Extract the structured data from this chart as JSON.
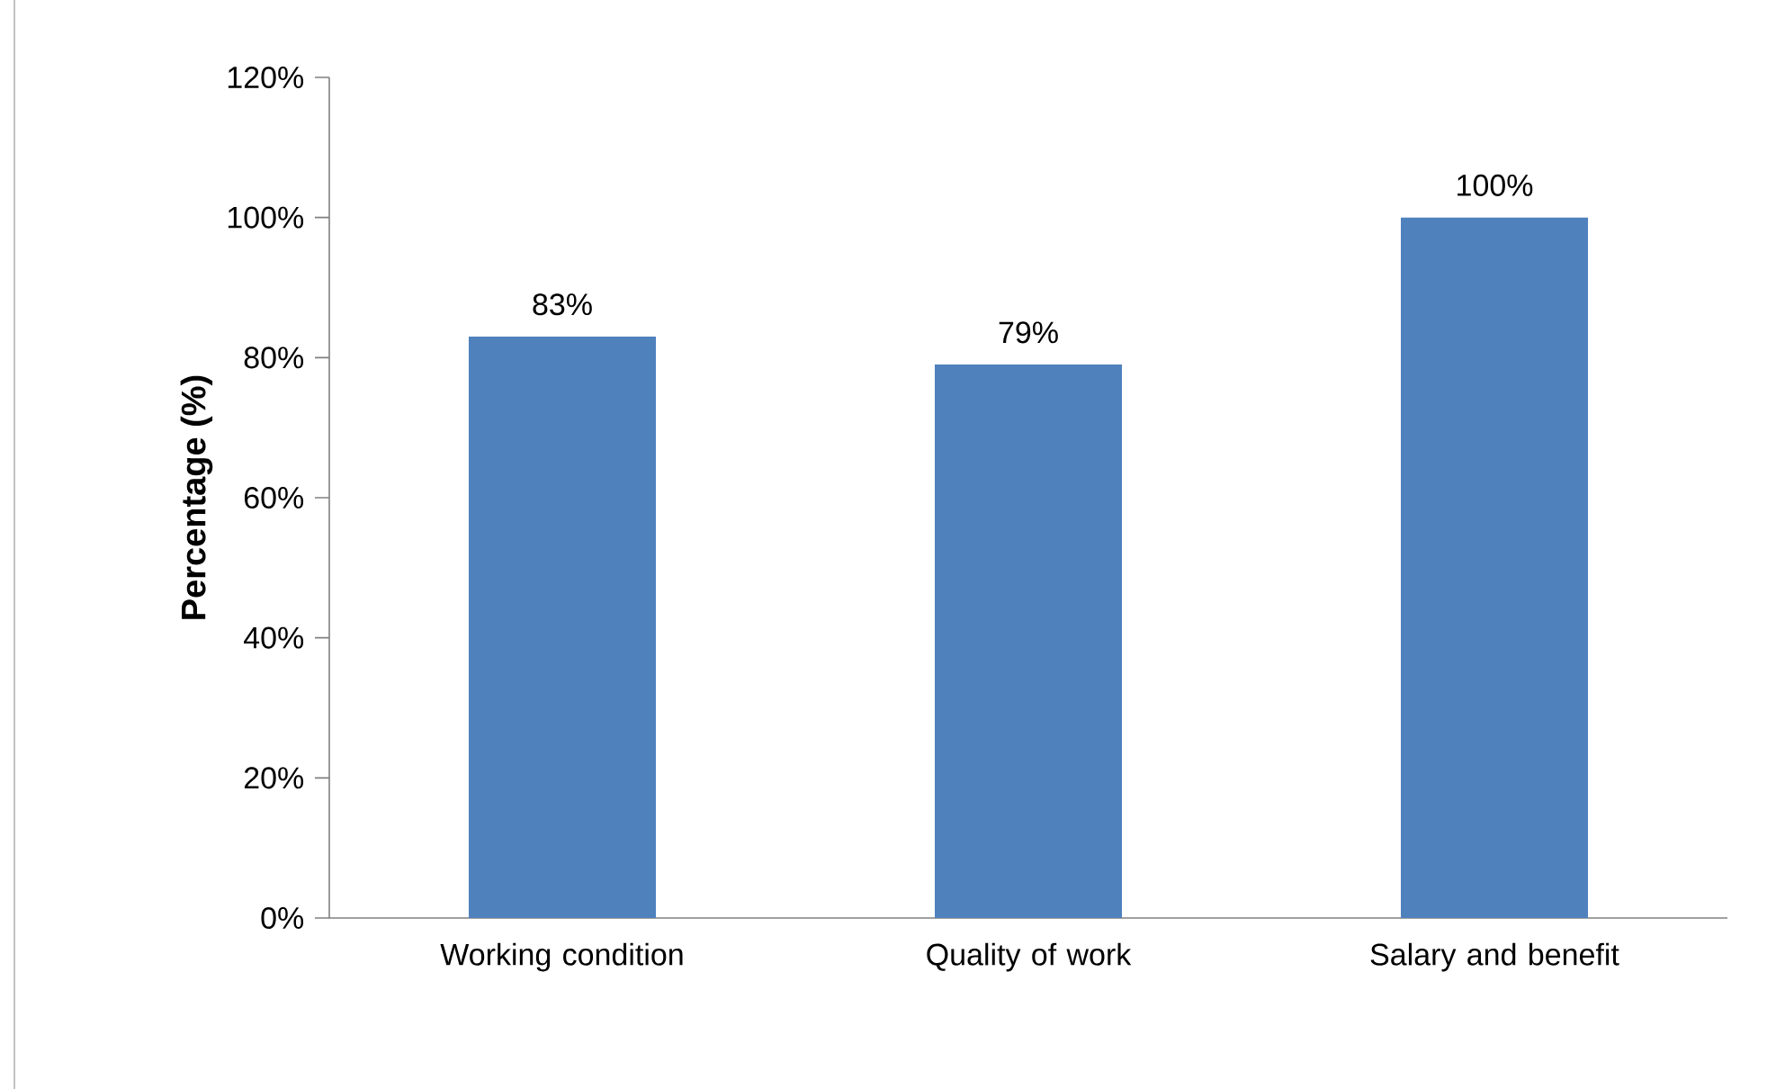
{
  "chart_data": {
    "type": "bar",
    "ylabel": "Percentage (%)",
    "categories": [
      "Working condition",
      "Quality of work",
      "Salary and benefit"
    ],
    "values": [
      83,
      79,
      100
    ],
    "color": "#4f81bd",
    "value_labels": [
      "83%",
      "79%",
      "100%"
    ],
    "ylim": [
      0,
      120
    ],
    "yticks": [
      {
        "value": 0,
        "label": "0%"
      },
      {
        "value": 20,
        "label": "20%"
      },
      {
        "value": 40,
        "label": "40%"
      },
      {
        "value": 60,
        "label": "60%"
      },
      {
        "value": 80,
        "label": "80%"
      },
      {
        "value": 100,
        "label": "100%"
      },
      {
        "value": 120,
        "label": "120%"
      }
    ]
  }
}
